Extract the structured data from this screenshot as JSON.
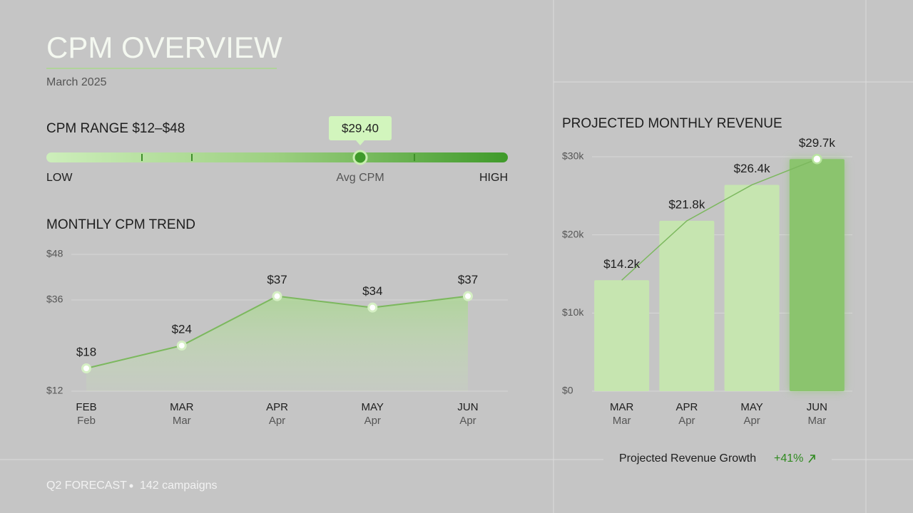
{
  "header": {
    "title": "CPM OVERVIEW",
    "subtitle": "March 2025"
  },
  "range": {
    "label": "CPM RANGE $12–$48",
    "tooltip": "$29.40",
    "low_label": "LOW",
    "marker_label": "Avg CPM",
    "high_label": "HIGH"
  },
  "footer": {
    "text": "Q2 FORECAST",
    "campaigns": "142 campaigns",
    "growth_label": "Projected Revenue Growth",
    "growth_value": "+41%"
  },
  "chart_data": [
    {
      "type": "line",
      "title": "MONTHLY CPM TREND",
      "categories": [
        "FEB",
        "MAR",
        "APR",
        "MAY",
        "JUN"
      ],
      "sublabels": [
        "Feb",
        "Mar",
        "Apr",
        "Apr",
        "Apr"
      ],
      "values": [
        18,
        24,
        37,
        34,
        37
      ],
      "value_labels": [
        "$18",
        "$24",
        "$37",
        "$34",
        "$37"
      ],
      "color": "#7cb85e",
      "ylim": [
        12,
        48
      ],
      "yticks": [
        {
          "value": 12,
          "label": "$12"
        },
        {
          "value": 36,
          "label": "$36"
        },
        {
          "value": 48,
          "label": "$48"
        }
      ],
      "grid": true
    },
    {
      "type": "bar",
      "title": "PROJECTED MONTHLY REVENUE",
      "categories": [
        "MAR",
        "APR",
        "MAY",
        "JUN"
      ],
      "sublabels": [
        "Mar",
        "Apr",
        "Apr",
        "Mar"
      ],
      "values": [
        14200,
        21800,
        26400,
        29700
      ],
      "value_labels": [
        "$14.2k",
        "$21.8k",
        "$26.4k",
        "$29.7k"
      ],
      "colors": [
        "#c6e5b0",
        "#c6e5b0",
        "#c6e5b0",
        "#8bc46e"
      ],
      "trend_color": "#7cb85e",
      "ylim": [
        0,
        30000
      ],
      "yticks": [
        {
          "value": 0,
          "label": "$0"
        },
        {
          "value": 10000,
          "label": "$10k"
        },
        {
          "value": 20000,
          "label": "$20k"
        },
        {
          "value": 30000,
          "label": "$30k"
        }
      ],
      "grid": true
    }
  ]
}
